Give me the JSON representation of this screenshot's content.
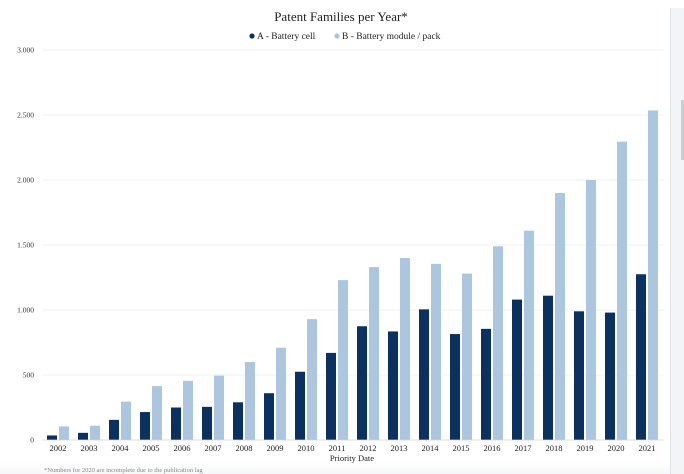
{
  "chart_data": {
    "type": "bar",
    "title": "Patent Families per Year*",
    "xlabel": "Priority Date",
    "ylabel": "",
    "ylim": [
      0,
      3000
    ],
    "yticks": [
      0,
      500,
      1000,
      1500,
      2000,
      2500,
      3000
    ],
    "ytick_labels": [
      "0",
      "500",
      "1.000",
      "1.500",
      "2.000",
      "2.500",
      "3.000"
    ],
    "categories": [
      "2002",
      "2003",
      "2004",
      "2005",
      "2006",
      "2007",
      "2008",
      "2009",
      "2010",
      "2011",
      "2012",
      "2013",
      "2014",
      "2015",
      "2016",
      "2017",
      "2018",
      "2019",
      "2020",
      "2021"
    ],
    "series": [
      {
        "name": "A - Battery cell",
        "color": "#0b3161",
        "values": [
          35,
          55,
          155,
          215,
          250,
          255,
          290,
          360,
          525,
          670,
          875,
          835,
          1005,
          815,
          855,
          1080,
          1110,
          990,
          980,
          1275
        ]
      },
      {
        "name": "B - Battery module / pack",
        "color": "#adc6e0",
        "values": [
          105,
          110,
          295,
          415,
          455,
          495,
          600,
          710,
          930,
          1230,
          1330,
          1400,
          1355,
          1280,
          1490,
          1610,
          1900,
          2000,
          2295,
          2535
        ]
      }
    ],
    "legend_position": "top-center",
    "grid": true,
    "footnote": "*Numbers for 2020 are incomplete due to the publication lag"
  }
}
